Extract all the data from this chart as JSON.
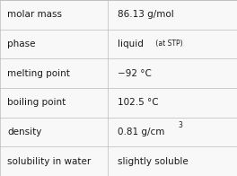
{
  "rows": [
    {
      "label": "molar mass",
      "value_parts": [
        {
          "text": "86.13 g/mol",
          "style": "normal"
        }
      ]
    },
    {
      "label": "phase",
      "value_parts": [
        {
          "text": "liquid",
          "style": "normal"
        },
        {
          "text": " (at STP)",
          "style": "small"
        }
      ]
    },
    {
      "label": "melting point",
      "value_parts": [
        {
          "text": "−92 °C",
          "style": "normal"
        }
      ]
    },
    {
      "label": "boiling point",
      "value_parts": [
        {
          "text": "102.5 °C",
          "style": "normal"
        }
      ]
    },
    {
      "label": "density",
      "value_parts": [
        {
          "text": "0.81 g/cm",
          "style": "normal"
        },
        {
          "text": "3",
          "style": "super"
        }
      ]
    },
    {
      "label": "solubility in water",
      "value_parts": [
        {
          "text": "slightly soluble",
          "style": "normal"
        }
      ]
    }
  ],
  "bg_color": "#f8f8f8",
  "line_color": "#bbbbbb",
  "text_color": "#1a1a1a",
  "label_fontsize": 7.5,
  "value_fontsize": 7.5,
  "small_fontsize": 5.5,
  "col_split": 0.455,
  "fig_width": 2.64,
  "fig_height": 1.96,
  "dpi": 100
}
